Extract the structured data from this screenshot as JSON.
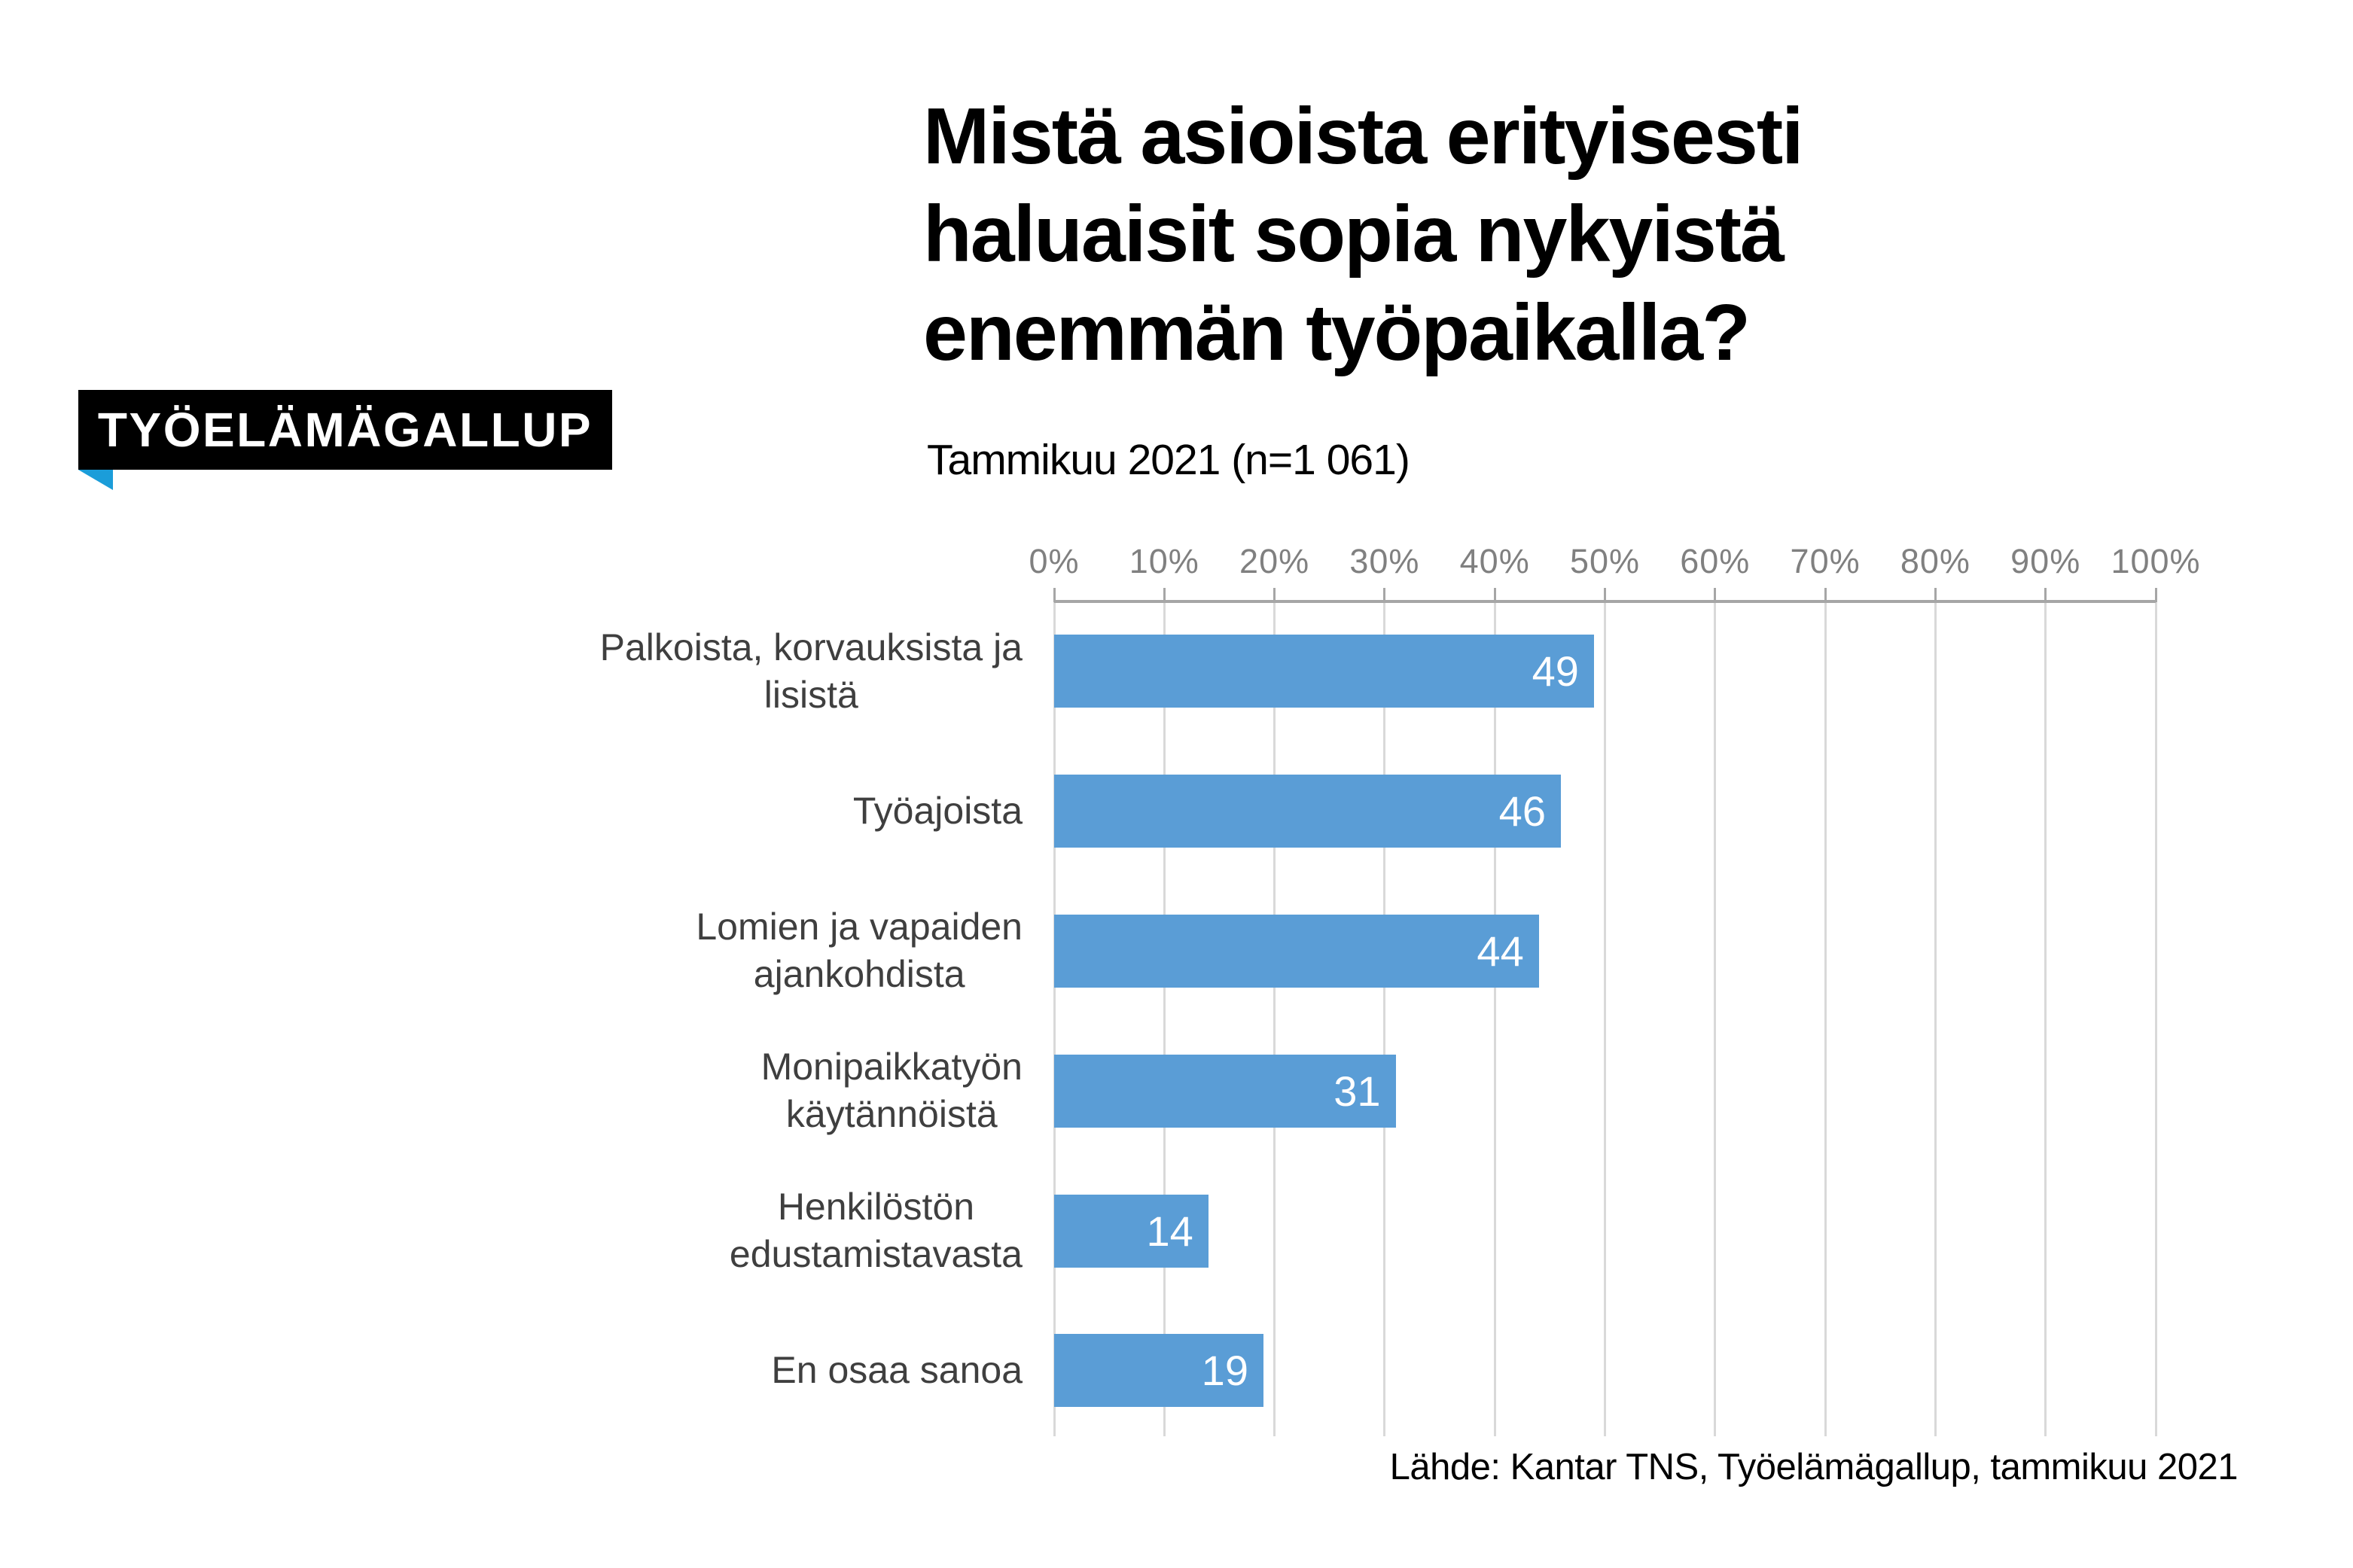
{
  "badge": {
    "label": "TYÖELÄMÄGALLUP"
  },
  "header": {
    "title": "Mistä asioista erityisesti\nhaluaisit sopia nykyistä\nenemmän työpaikalla?",
    "subtitle": "Tammikuu 2021 (n=1 061)"
  },
  "footer": {
    "source": "Lähde: Kantar TNS, Työelämägallup, tammikuu 2021"
  },
  "colors": {
    "badge_bg": "#000000",
    "badge_text": "#ffffff",
    "badge_tail": "#1b9dd9",
    "title_text": "#000000",
    "bar_fill": "#5a9dd6",
    "value_label": "#ffffff",
    "gridline": "#d9d9d9",
    "axis_line": "#a6a6a6",
    "tick_mark": "#a6a6a6",
    "tick_label": "#808080",
    "category_label": "#3f3f3f"
  },
  "chart_data": {
    "type": "bar",
    "orientation": "horizontal",
    "title": "Mistä asioista erityisesti haluaisit sopia nykyistä enemmän työpaikalla?",
    "subtitle": "Tammikuu 2021 (n=1 061)",
    "categories": [
      "Palkoista, korvauksista ja\nlisistä",
      "Työajoista",
      "Lomien ja vapaiden\najankohdista",
      "Monipaikkatyön\nkäytännöistä",
      "Henkilöstön\nedustamistavasta",
      "En osaa sanoa"
    ],
    "values": [
      49,
      46,
      44,
      31,
      14,
      19
    ],
    "value_labels": [
      "49",
      "46",
      "44",
      "31",
      "14",
      "19"
    ],
    "x_tick_labels": [
      "0%",
      "10%",
      "20%",
      "30%",
      "40%",
      "50%",
      "60%",
      "70%",
      "80%",
      "90%",
      "100%"
    ],
    "xlim": [
      0,
      100
    ],
    "grid": true,
    "legend": false,
    "source": "Lähde: Kantar TNS, Työelämägallup, tammikuu 2021"
  }
}
